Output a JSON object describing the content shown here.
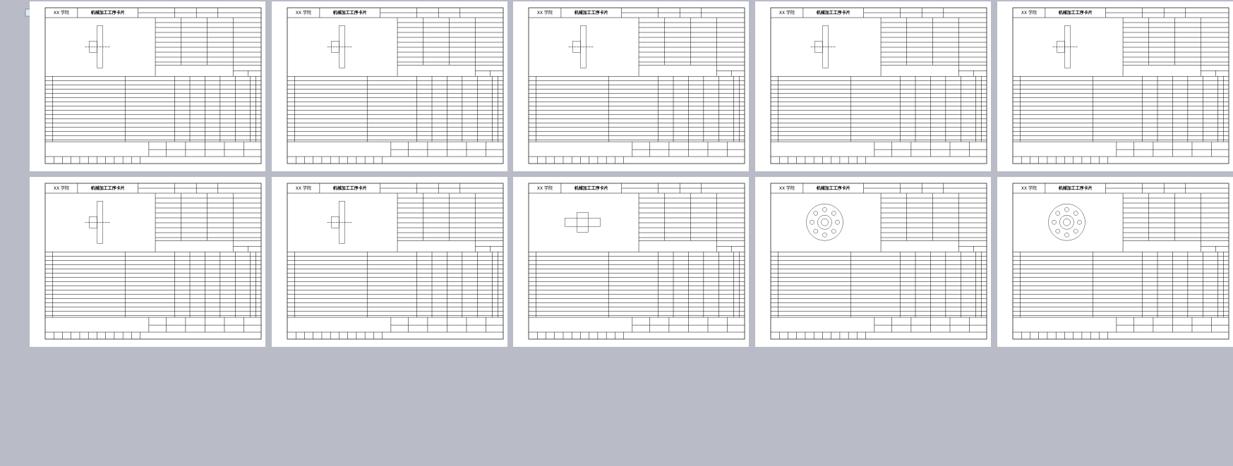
{
  "pages": [
    {
      "school": "XX 学院",
      "title": "机械加工工序卡片"
    },
    {
      "school": "XX 学院",
      "title": "机械加工工序卡片"
    },
    {
      "school": "XX 学院",
      "title": "机械加工工序卡片"
    },
    {
      "school": "XX 学院",
      "title": "机械加工工序卡片"
    },
    {
      "school": "XX 学院",
      "title": "机械加工工序卡片"
    },
    {
      "school": "XX 学院",
      "title": "机械加工工序卡片"
    },
    {
      "school": "XX 学院",
      "title": "机械加工工序卡片"
    },
    {
      "school": "XX 学院",
      "title": "机械加工工序卡片"
    },
    {
      "school": "XX 学院",
      "title": "机械加工工序卡片"
    },
    {
      "school": "XX 学院",
      "title": "机械加工工序卡片"
    }
  ]
}
